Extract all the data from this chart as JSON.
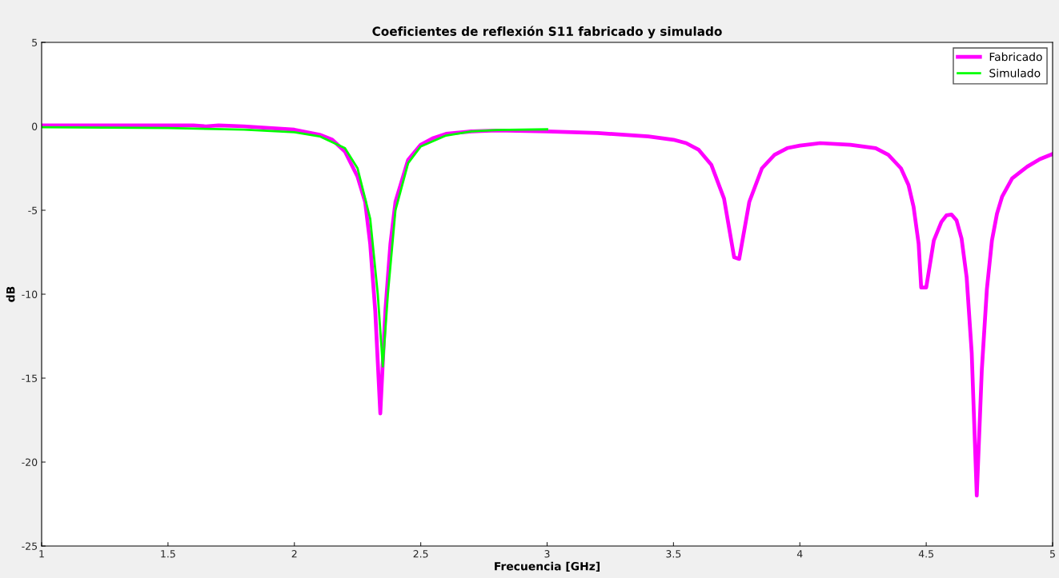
{
  "chart_data": {
    "type": "line",
    "title": "Coeficientes de reflexión S11 fabricado y simulado",
    "xlabel": "Frecuencia [GHz]",
    "ylabel": "dB",
    "xlim": [
      1,
      5
    ],
    "ylim": [
      -25,
      5
    ],
    "xticks": [
      1,
      1.5,
      2,
      2.5,
      3,
      3.5,
      4,
      4.5,
      5
    ],
    "yticks": [
      -25,
      -20,
      -15,
      -10,
      -5,
      0,
      5
    ],
    "grid": false,
    "legend": "top right",
    "series": [
      {
        "name": "Fabricado",
        "color": "#ff00ff",
        "x": [
          1.0,
          1.2,
          1.4,
          1.6,
          1.65,
          1.7,
          1.8,
          1.9,
          2.0,
          2.1,
          2.15,
          2.2,
          2.25,
          2.28,
          2.3,
          2.32,
          2.34,
          2.36,
          2.38,
          2.4,
          2.45,
          2.5,
          2.55,
          2.6,
          2.7,
          2.8,
          3.0,
          3.2,
          3.4,
          3.5,
          3.55,
          3.6,
          3.65,
          3.7,
          3.74,
          3.76,
          3.8,
          3.85,
          3.9,
          3.95,
          4.0,
          4.08,
          4.2,
          4.3,
          4.35,
          4.4,
          4.43,
          4.45,
          4.47,
          4.48,
          4.5,
          4.53,
          4.56,
          4.58,
          4.6,
          4.62,
          4.64,
          4.66,
          4.68,
          4.7,
          4.72,
          4.74,
          4.76,
          4.78,
          4.8,
          4.84,
          4.9,
          4.95,
          5.0
        ],
        "values": [
          0.05,
          0.05,
          0.05,
          0.05,
          0.0,
          0.05,
          0.0,
          -0.1,
          -0.2,
          -0.5,
          -0.8,
          -1.5,
          -3,
          -4.5,
          -7,
          -11,
          -17.1,
          -11,
          -7,
          -4.5,
          -2,
          -1.1,
          -0.7,
          -0.45,
          -0.3,
          -0.25,
          -0.3,
          -0.4,
          -0.6,
          -0.8,
          -1.0,
          -1.4,
          -2.3,
          -4.3,
          -7.8,
          -7.9,
          -4.5,
          -2.5,
          -1.7,
          -1.3,
          -1.15,
          -1.0,
          -1.1,
          -1.3,
          -1.7,
          -2.5,
          -3.5,
          -4.8,
          -7.0,
          -9.6,
          -9.6,
          -6.8,
          -5.7,
          -5.3,
          -5.25,
          -5.6,
          -6.7,
          -9.0,
          -13.5,
          -22.0,
          -14.5,
          -9.7,
          -6.8,
          -5.2,
          -4.2,
          -3.1,
          -2.4,
          -1.95,
          -1.65
        ]
      },
      {
        "name": "Simulado",
        "color": "#00ff00",
        "x": [
          1.0,
          1.5,
          1.8,
          2.0,
          2.1,
          2.2,
          2.25,
          2.3,
          2.33,
          2.35,
          2.37,
          2.4,
          2.45,
          2.5,
          2.6,
          2.7,
          2.8,
          3.0
        ],
        "values": [
          -0.05,
          -0.1,
          -0.2,
          -0.35,
          -0.6,
          -1.3,
          -2.5,
          -5.5,
          -10,
          -14.3,
          -10,
          -5,
          -2.2,
          -1.2,
          -0.55,
          -0.3,
          -0.22,
          -0.18
        ]
      }
    ]
  }
}
